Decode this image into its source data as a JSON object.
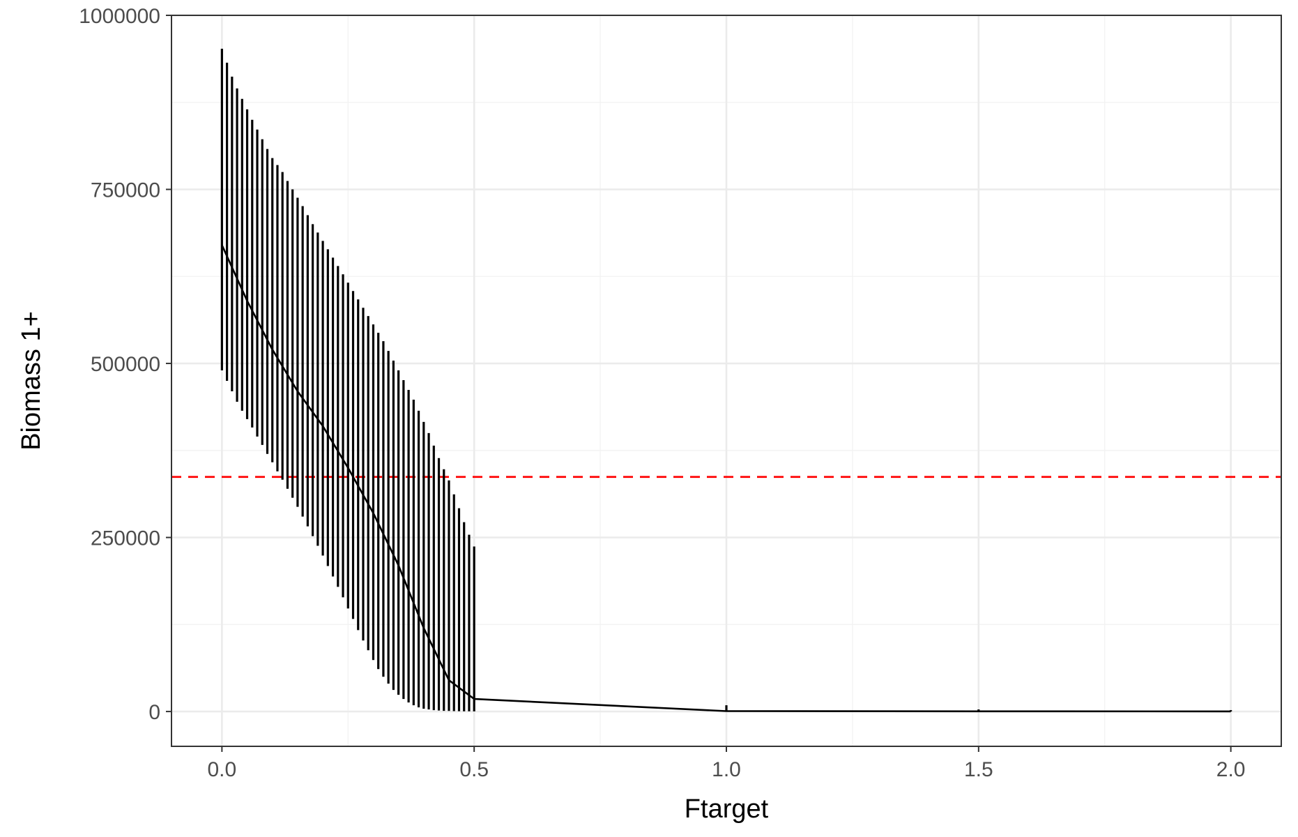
{
  "chart_data": {
    "type": "line",
    "title": "",
    "xlabel": "Ftarget",
    "ylabel": "Biomass 1+",
    "xlim": [
      -0.1,
      2.1
    ],
    "ylim": [
      -50000,
      1000000
    ],
    "x_ticks": [
      0.0,
      0.5,
      1.0,
      1.5,
      2.0
    ],
    "x_tick_labels": [
      "0.0",
      "0.5",
      "1.0",
      "1.5",
      "2.0"
    ],
    "y_ticks": [
      0,
      250000,
      500000,
      750000,
      1000000
    ],
    "y_tick_labels": [
      "0",
      "250000",
      "500000",
      "750000",
      "1000000"
    ],
    "grid": true,
    "legend": "none",
    "reference_line": {
      "y": 337000,
      "style": "dashed",
      "color": "#ff0000"
    },
    "series": [
      {
        "kind": "median-line",
        "color": "#000000",
        "x": [
          0.0,
          0.05,
          0.1,
          0.15,
          0.2,
          0.25,
          0.3,
          0.35,
          0.4,
          0.45,
          0.5,
          1.0,
          1.5,
          2.0
        ],
        "y": [
          670000,
          590000,
          520000,
          460000,
          410000,
          350000,
          285000,
          210000,
          120000,
          45000,
          18000,
          600,
          300,
          200
        ]
      },
      {
        "kind": "interval-bars",
        "color": "#000000",
        "x": [
          0.0,
          0.01,
          0.02,
          0.03,
          0.04,
          0.05,
          0.06,
          0.07,
          0.08,
          0.09,
          0.1,
          0.11,
          0.12,
          0.13,
          0.14,
          0.15,
          0.16,
          0.17,
          0.18,
          0.19,
          0.2,
          0.21,
          0.22,
          0.23,
          0.24,
          0.25,
          0.26,
          0.27,
          0.28,
          0.29,
          0.3,
          0.31,
          0.32,
          0.33,
          0.34,
          0.35,
          0.36,
          0.37,
          0.38,
          0.39,
          0.4,
          0.41,
          0.42,
          0.43,
          0.44,
          0.45,
          0.46,
          0.47,
          0.48,
          0.49,
          0.5,
          1.0,
          1.5,
          2.0
        ],
        "low": [
          490000,
          475000,
          460000,
          445000,
          432000,
          420000,
          408000,
          395000,
          383000,
          370000,
          358000,
          345000,
          333000,
          320000,
          307000,
          294000,
          280000,
          266000,
          252000,
          238000,
          224000,
          209000,
          194000,
          179000,
          164000,
          148000,
          133000,
          117000,
          102000,
          88000,
          74000,
          61000,
          50000,
          40000,
          31000,
          24000,
          18000,
          13000,
          9000,
          6000,
          4000,
          3000,
          2000,
          1500,
          1000,
          800,
          600,
          500,
          400,
          300,
          250,
          0,
          0,
          0
        ],
        "high": [
          952000,
          932000,
          912000,
          895000,
          880000,
          865000,
          850000,
          836000,
          822000,
          808000,
          795000,
          785000,
          775000,
          762000,
          750000,
          738000,
          726000,
          713000,
          700000,
          688000,
          676000,
          664000,
          652000,
          640000,
          628000,
          616000,
          604000,
          592000,
          580000,
          568000,
          556000,
          544000,
          532000,
          518000,
          504000,
          490000,
          476000,
          462000,
          448000,
          432000,
          416000,
          400000,
          382000,
          364000,
          348000,
          332000,
          312000,
          292000,
          272000,
          254000,
          237000,
          9000,
          3000,
          2000
        ]
      }
    ]
  }
}
